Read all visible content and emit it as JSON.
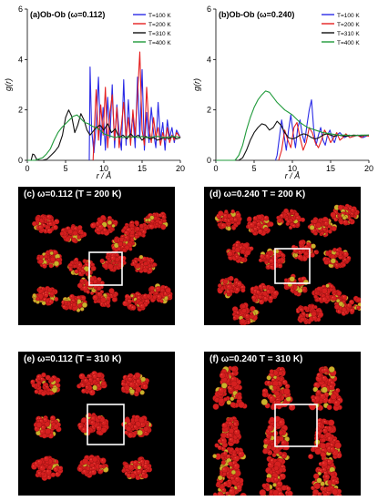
{
  "chart_data": [
    {
      "type": "line",
      "panel": "a",
      "title": "(a)Ob-Ob (ω=0.112)",
      "xlabel": "r / Å",
      "ylabel": "g(r)",
      "xlim": [
        0,
        20
      ],
      "ylim": [
        0,
        6
      ],
      "xticks": [
        "0",
        "5",
        "10",
        "15",
        "20"
      ],
      "yticks": [
        "0",
        "2",
        "4",
        "6"
      ],
      "legend_position": "top-right",
      "series": [
        {
          "name": "T=100 K",
          "color": "#2a2ae6",
          "x": [
            8.1,
            8.2,
            8.4,
            8.7,
            9.0,
            9.3,
            9.6,
            9.9,
            10.2,
            10.5,
            10.8,
            11.1,
            11.4,
            11.7,
            12.0,
            12.3,
            12.6,
            12.9,
            13.2,
            13.5,
            13.8,
            14.1,
            14.4,
            14.7,
            15.0,
            15.3,
            15.6,
            15.9,
            16.2,
            16.5,
            16.8,
            17.1,
            17.4,
            17.7,
            18.0,
            18.3,
            18.6,
            18.9,
            19.2,
            19.5,
            20.0
          ],
          "y": [
            0.0,
            3.7,
            1.2,
            0.3,
            1.4,
            3.3,
            0.6,
            2.1,
            0.4,
            2.5,
            0.9,
            3.0,
            0.5,
            2.2,
            1.1,
            0.4,
            3.2,
            0.6,
            2.4,
            0.9,
            1.8,
            0.5,
            3.3,
            0.9,
            3.6,
            0.4,
            1.9,
            0.7,
            2.1,
            1.1,
            0.5,
            2.3,
            0.8,
            1.5,
            0.4,
            1.6,
            0.9,
            1.3,
            0.7,
            1.2,
            0.9
          ]
        },
        {
          "name": "T=200 K",
          "color": "#e52020",
          "x": [
            8.6,
            8.8,
            9.0,
            9.3,
            9.6,
            9.9,
            10.2,
            10.5,
            10.8,
            11.1,
            11.4,
            11.7,
            12.0,
            12.3,
            12.6,
            12.9,
            13.2,
            13.5,
            13.8,
            14.1,
            14.4,
            14.7,
            15.0,
            15.3,
            15.6,
            15.9,
            16.2,
            16.5,
            16.8,
            17.1,
            17.4,
            17.7,
            18.0,
            18.3,
            18.6,
            18.9,
            19.2,
            19.5,
            20.0
          ],
          "y": [
            0.0,
            1.5,
            2.8,
            0.8,
            2.2,
            1.0,
            2.9,
            0.5,
            1.9,
            2.6,
            0.8,
            2.1,
            0.5,
            1.4,
            2.3,
            0.9,
            1.7,
            0.6,
            2.0,
            1.0,
            2.6,
            4.3,
            1.2,
            0.6,
            2.9,
            1.3,
            0.7,
            1.7,
            0.9,
            1.3,
            0.6,
            1.1,
            0.8,
            1.3,
            0.7,
            1.0,
            0.8,
            1.1,
            0.9
          ]
        },
        {
          "name": "T=310 K",
          "color": "#111111",
          "x": [
            0.0,
            0.5,
            0.7,
            0.9,
            1.2,
            1.6,
            2.0,
            2.6,
            3.1,
            3.6,
            4.1,
            4.6,
            5.0,
            5.4,
            5.8,
            6.2,
            6.6,
            7.0,
            7.4,
            7.8,
            8.2,
            8.6,
            9.0,
            9.5,
            10.0,
            10.5,
            11.0,
            11.5,
            12.0,
            12.5,
            13.0,
            13.5,
            14.0,
            14.5,
            15.0,
            15.5,
            16.0,
            16.5,
            17.0,
            17.5,
            18.0,
            18.5,
            19.0,
            19.5,
            20.0
          ],
          "y": [
            0.0,
            0.0,
            0.25,
            0.22,
            0.05,
            0.0,
            0.0,
            0.05,
            0.2,
            0.35,
            0.55,
            1.0,
            1.7,
            2.0,
            1.75,
            1.1,
            1.4,
            1.85,
            1.6,
            1.2,
            1.0,
            1.15,
            1.3,
            1.4,
            1.2,
            1.45,
            1.1,
            1.25,
            0.9,
            1.0,
            0.85,
            1.05,
            0.9,
            1.0,
            0.8,
            0.95,
            0.85,
            0.9,
            0.8,
            0.85,
            0.9,
            0.85,
            0.95,
            0.85,
            0.9
          ]
        },
        {
          "name": "T=400 K",
          "color": "#1f9a3a",
          "x": [
            0.0,
            1.0,
            2.0,
            2.5,
            3.0,
            3.5,
            4.0,
            4.5,
            5.0,
            5.5,
            6.0,
            6.5,
            7.0,
            7.5,
            8.0,
            8.5,
            9.0,
            9.5,
            10.0,
            10.5,
            11.0,
            11.5,
            12.0,
            12.5,
            13.0,
            13.5,
            14.0,
            14.5,
            15.0,
            15.5,
            16.0,
            17.0,
            18.0,
            19.0,
            20.0
          ],
          "y": [
            0.0,
            0.0,
            0.1,
            0.25,
            0.45,
            0.8,
            1.1,
            1.3,
            1.45,
            1.6,
            1.75,
            1.8,
            1.65,
            1.5,
            1.45,
            1.35,
            1.3,
            1.2,
            1.05,
            1.0,
            0.95,
            0.9,
            0.95,
            0.9,
            0.95,
            0.9,
            0.95,
            0.9,
            0.95,
            0.9,
            0.92,
            0.95,
            0.9,
            0.95,
            0.92
          ]
        }
      ]
    },
    {
      "type": "line",
      "panel": "b",
      "title": "(b)Ob-Ob (ω=0.240)",
      "xlabel": "r / Å",
      "ylabel": "g(r)",
      "xlim": [
        0,
        20
      ],
      "ylim": [
        0,
        6
      ],
      "xticks": [
        "0",
        "5",
        "10",
        "15",
        "20"
      ],
      "yticks": [
        "0",
        "2",
        "4",
        "6"
      ],
      "legend_position": "top-right",
      "series": [
        {
          "name": "T=100 K",
          "color": "#2a2ae6",
          "x": [
            7.8,
            8.0,
            8.3,
            8.6,
            8.9,
            9.2,
            9.5,
            9.8,
            10.1,
            10.4,
            10.7,
            11.0,
            11.3,
            11.6,
            11.9,
            12.2,
            12.5,
            12.8,
            13.1,
            13.4,
            13.7,
            14.0,
            14.3,
            14.6,
            14.9,
            15.2,
            15.5,
            15.8,
            16.2,
            16.8,
            17.4,
            18.0,
            18.6,
            19.2,
            20.0
          ],
          "y": [
            0.0,
            0.2,
            0.9,
            1.6,
            1.0,
            0.4,
            1.2,
            1.8,
            1.1,
            0.5,
            1.3,
            1.6,
            1.0,
            0.7,
            1.4,
            2.0,
            2.4,
            1.2,
            0.6,
            1.0,
            1.3,
            0.8,
            0.6,
            1.0,
            1.2,
            0.9,
            0.7,
            1.0,
            1.1,
            0.9,
            1.0,
            0.95,
            1.0,
            0.9,
            1.0
          ]
        },
        {
          "name": "T=200 K",
          "color": "#e52020",
          "x": [
            8.2,
            8.6,
            9.0,
            9.4,
            9.8,
            10.2,
            10.6,
            11.0,
            11.4,
            11.8,
            12.2,
            12.6,
            13.0,
            13.4,
            13.8,
            14.2,
            14.6,
            15.0,
            15.4,
            15.8,
            16.2,
            16.6,
            17.0,
            17.5,
            18.0,
            18.5,
            19.0,
            19.5,
            20.0
          ],
          "y": [
            0.0,
            0.4,
            1.2,
            0.8,
            0.5,
            1.3,
            1.5,
            0.9,
            0.4,
            0.7,
            1.3,
            1.1,
            0.7,
            0.5,
            0.8,
            1.2,
            1.0,
            0.7,
            0.9,
            1.1,
            0.8,
            0.9,
            1.05,
            0.9,
            0.95,
            1.0,
            0.9,
            1.0,
            0.95
          ]
        },
        {
          "name": "T=310 K",
          "color": "#111111",
          "x": [
            0.0,
            3.0,
            3.5,
            4.0,
            4.5,
            5.0,
            5.5,
            6.0,
            6.5,
            7.0,
            7.5,
            8.0,
            8.5,
            9.0,
            9.5,
            10.0,
            10.5,
            11.0,
            11.5,
            12.0,
            12.5,
            13.0,
            13.5,
            14.0,
            14.5,
            15.0,
            15.5,
            16.0,
            17.0,
            18.0,
            19.0,
            20.0
          ],
          "y": [
            0.0,
            0.0,
            0.1,
            0.4,
            0.8,
            1.1,
            1.3,
            1.45,
            1.4,
            1.2,
            1.3,
            1.55,
            1.4,
            1.1,
            0.9,
            0.85,
            0.9,
            1.0,
            1.05,
            1.0,
            0.9,
            0.85,
            0.9,
            1.0,
            1.05,
            1.0,
            0.95,
            1.0,
            0.95,
            1.0,
            0.98,
            1.0
          ]
        },
        {
          "name": "T=400 K",
          "color": "#1f9a3a",
          "x": [
            0.0,
            2.5,
            3.0,
            3.5,
            4.0,
            4.5,
            5.0,
            5.5,
            6.0,
            6.5,
            7.0,
            7.5,
            8.0,
            8.5,
            9.0,
            9.5,
            10.0,
            10.5,
            11.0,
            11.5,
            12.0,
            12.5,
            13.0,
            13.5,
            14.0,
            15.0,
            16.0,
            17.0,
            18.0,
            19.0,
            20.0
          ],
          "y": [
            0.0,
            0.0,
            0.2,
            0.6,
            1.2,
            1.7,
            2.1,
            2.4,
            2.6,
            2.75,
            2.7,
            2.5,
            2.3,
            2.15,
            2.0,
            1.9,
            1.8,
            1.65,
            1.5,
            1.4,
            1.3,
            1.25,
            1.2,
            1.15,
            1.1,
            1.05,
            1.0,
            1.0,
            0.98,
            1.0,
            1.0
          ]
        }
      ]
    }
  ],
  "snapshots": [
    {
      "id": "c",
      "label": "(c) ω=0.112 (T = 200 K)"
    },
    {
      "id": "d",
      "label": "(d)  ω=0.240 T = 200 K)"
    },
    {
      "id": "e",
      "label": "(e) ω=0.112 (T = 310 K)"
    },
    {
      "id": "f",
      "label": "(f)  ω=0.240 T = 310 K)"
    }
  ],
  "colors": {
    "molecule_red": "#d51f1f",
    "molecule_highlight": "#ff5a4a",
    "molecule_yellow": "#c8b32a",
    "snapshot_bg": "#000000",
    "cell_box": "#ffffff"
  }
}
